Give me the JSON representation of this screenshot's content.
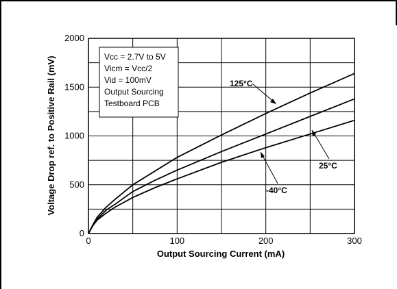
{
  "chart_data": {
    "type": "line",
    "xlabel": "Output Sourcing Current (mA)",
    "ylabel": "Voltage Drop ref. to Positive Rail (mV)",
    "xlim": [
      0,
      300
    ],
    "ylim": [
      0,
      2000
    ],
    "x_ticks": [
      "0",
      "100",
      "200",
      "300"
    ],
    "y_ticks": [
      "0",
      "500",
      "1000",
      "1500",
      "2000"
    ],
    "grid": true,
    "conditions": [
      "Vcc = 2.7V to 5V",
      "Vicm = Vcc/2",
      "Vid = 100mV",
      "Output Sourcing",
      "Testboard PCB"
    ],
    "series": [
      {
        "name": "125°C",
        "x": [
          0,
          5,
          10,
          20,
          30,
          50,
          75,
          100,
          150,
          200,
          250,
          300
        ],
        "y": [
          0,
          90,
          170,
          270,
          350,
          500,
          640,
          780,
          1010,
          1230,
          1440,
          1640
        ]
      },
      {
        "name": "25°C",
        "x": [
          0,
          5,
          10,
          20,
          30,
          50,
          75,
          100,
          150,
          200,
          250,
          300
        ],
        "y": [
          0,
          85,
          150,
          240,
          300,
          430,
          545,
          650,
          840,
          1020,
          1200,
          1380
        ]
      },
      {
        "name": "-40°C",
        "x": [
          0,
          5,
          10,
          20,
          30,
          50,
          75,
          100,
          150,
          200,
          250,
          300
        ],
        "y": [
          0,
          80,
          140,
          210,
          270,
          370,
          470,
          560,
          730,
          880,
          1020,
          1160
        ]
      }
    ]
  }
}
